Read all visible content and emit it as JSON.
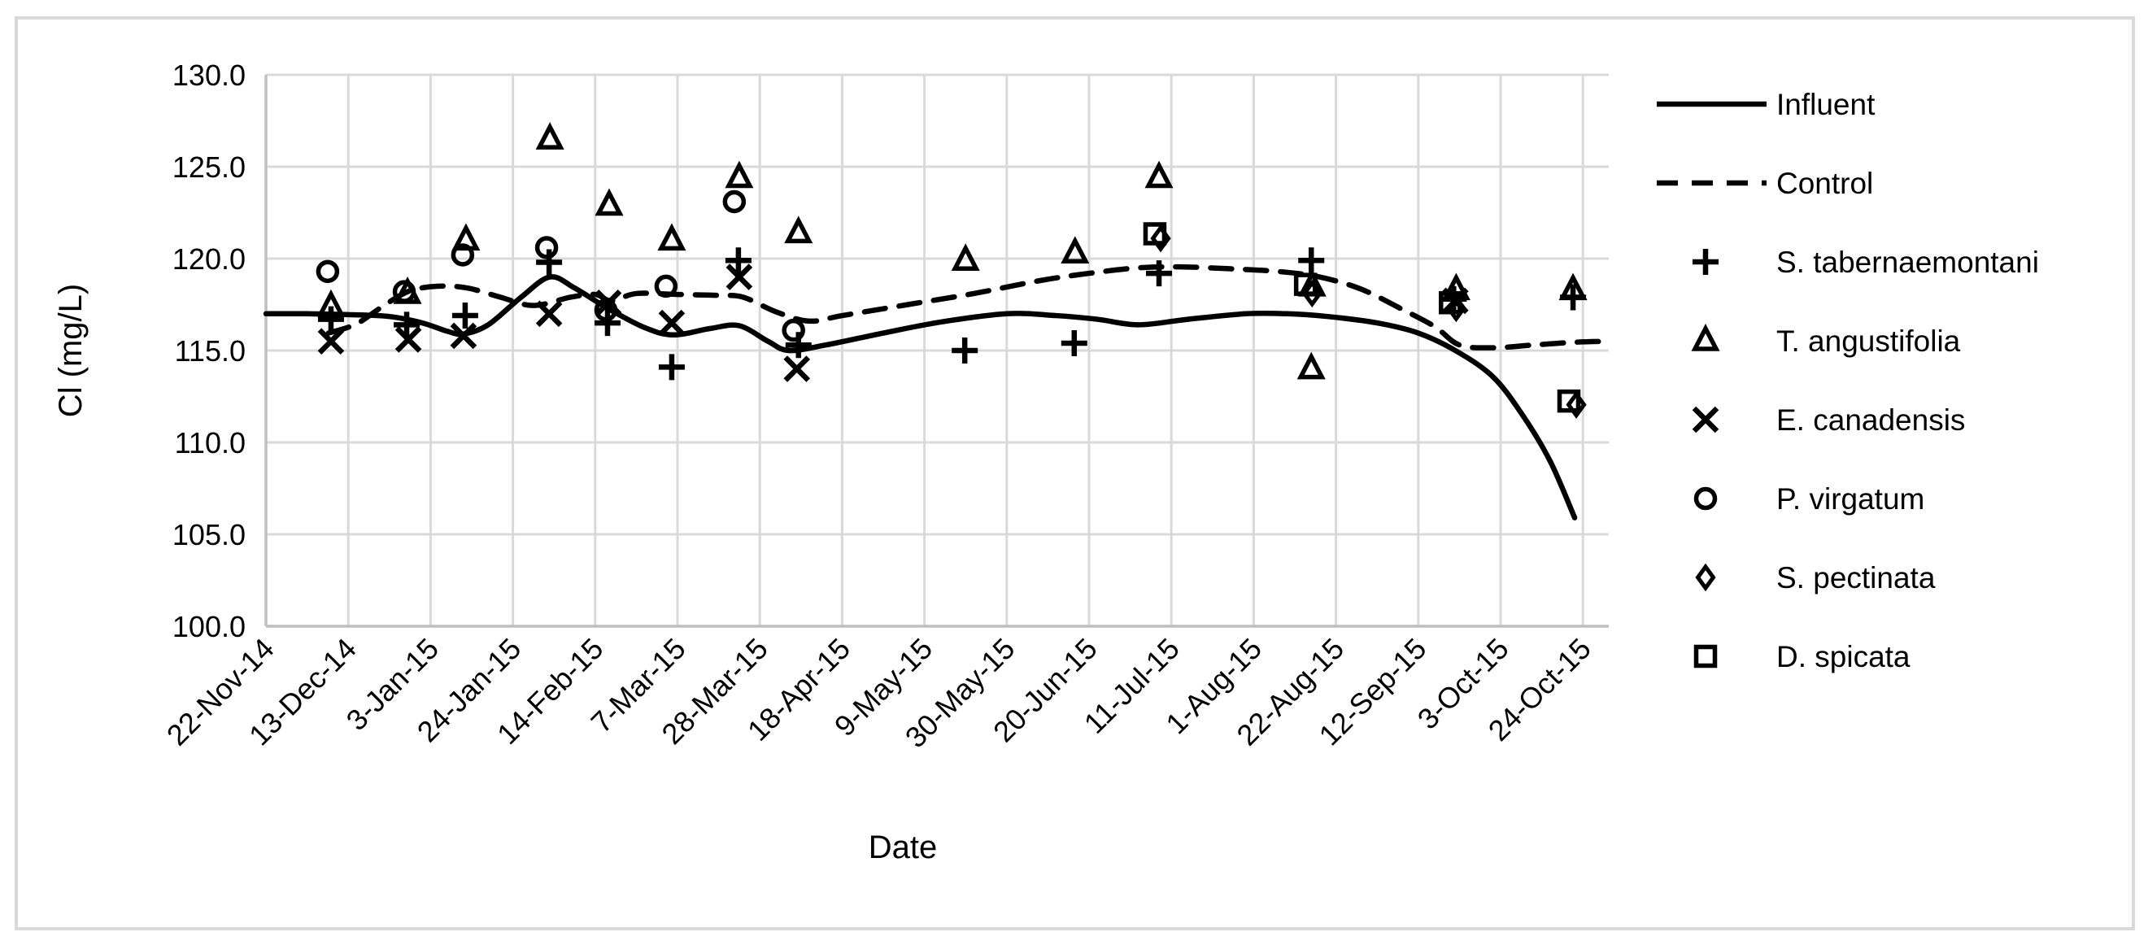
{
  "figure": {
    "background": "#ffffff",
    "border_color": "#d9d9d9"
  },
  "chart_data": {
    "type": "scatter",
    "title": "",
    "xlabel": "Date",
    "ylabel": "Cl (mg/L)",
    "ylim": [
      100.0,
      130.0
    ],
    "ytick_step": 5.0,
    "ytick_labels": [
      "100.0",
      "105.0",
      "110.0",
      "115.0",
      "120.0",
      "125.0",
      "130.0"
    ],
    "xtick_labels": [
      "22-Nov-14",
      "13-Dec-14",
      "3-Jan-15",
      "24-Jan-15",
      "14-Feb-15",
      "7-Mar-15",
      "28-Mar-15",
      "18-Apr-15",
      "9-May-15",
      "30-May-15",
      "20-Jun-15",
      "11-Jul-15",
      "1-Aug-15",
      "22-Aug-15",
      "12-Sep-15",
      "3-Oct-15",
      "24-Oct-15"
    ],
    "x_unit": "gridline index: 0 = 22-Nov-14, each unit = 21 days",
    "x_range": [
      0,
      16.3
    ],
    "grid": true,
    "grid_color": "#d9d9d9",
    "axis_color": "#bfbfbf",
    "series_color": "#000000",
    "legend_position": "right",
    "lines": [
      {
        "name": "Influent",
        "style": "solid",
        "points": [
          [
            0,
            117.0
          ],
          [
            0.5,
            117.0
          ],
          [
            1.0,
            116.95
          ],
          [
            1.5,
            116.85
          ],
          [
            1.9,
            116.5
          ],
          [
            2.2,
            116.05
          ],
          [
            2.4,
            115.9
          ],
          [
            2.7,
            116.4
          ],
          [
            3.1,
            117.9
          ],
          [
            3.45,
            119.0
          ],
          [
            3.75,
            118.4
          ],
          [
            4.15,
            117.3
          ],
          [
            4.6,
            116.25
          ],
          [
            4.95,
            115.85
          ],
          [
            5.4,
            116.2
          ],
          [
            5.75,
            116.35
          ],
          [
            6.1,
            115.5
          ],
          [
            6.35,
            115.0
          ],
          [
            6.8,
            115.3
          ],
          [
            7.5,
            115.95
          ],
          [
            8.2,
            116.55
          ],
          [
            9.0,
            117.0
          ],
          [
            9.6,
            116.9
          ],
          [
            10.1,
            116.7
          ],
          [
            10.6,
            116.4
          ],
          [
            11.2,
            116.7
          ],
          [
            11.9,
            117.0
          ],
          [
            12.4,
            117.0
          ],
          [
            12.9,
            116.85
          ],
          [
            13.5,
            116.5
          ],
          [
            14.0,
            115.95
          ],
          [
            14.45,
            115.0
          ],
          [
            14.9,
            113.6
          ],
          [
            15.25,
            111.6
          ],
          [
            15.6,
            109.0
          ],
          [
            15.9,
            105.9
          ]
        ]
      },
      {
        "name": "Control",
        "style": "dashed",
        "points": [
          [
            0.76,
            115.95
          ],
          [
            1.1,
            116.45
          ],
          [
            1.45,
            117.5
          ],
          [
            1.75,
            118.25
          ],
          [
            2.1,
            118.5
          ],
          [
            2.45,
            118.4
          ],
          [
            2.85,
            117.9
          ],
          [
            3.25,
            117.45
          ],
          [
            3.7,
            117.9
          ],
          [
            4.0,
            118.05
          ],
          [
            4.2,
            117.7
          ],
          [
            4.5,
            118.1
          ],
          [
            5.0,
            118.05
          ],
          [
            5.5,
            118.0
          ],
          [
            5.8,
            117.9
          ],
          [
            6.2,
            117.1
          ],
          [
            6.6,
            116.6
          ],
          [
            7.0,
            116.9
          ],
          [
            7.8,
            117.5
          ],
          [
            8.6,
            118.1
          ],
          [
            9.4,
            118.8
          ],
          [
            10.0,
            119.2
          ],
          [
            10.6,
            119.5
          ],
          [
            11.1,
            119.55
          ],
          [
            11.7,
            119.45
          ],
          [
            12.3,
            119.3
          ],
          [
            12.8,
            119.0
          ],
          [
            13.3,
            118.35
          ],
          [
            13.8,
            117.25
          ],
          [
            14.2,
            116.3
          ],
          [
            14.5,
            115.3
          ],
          [
            14.9,
            115.15
          ],
          [
            15.4,
            115.3
          ],
          [
            15.9,
            115.45
          ],
          [
            16.3,
            115.5
          ]
        ]
      }
    ],
    "scatter_series": [
      {
        "name": "S. tabernaemontani",
        "marker": "plus",
        "points": [
          [
            0.79,
            116.7
          ],
          [
            1.71,
            116.4
          ],
          [
            2.42,
            116.9
          ],
          [
            3.44,
            119.8
          ],
          [
            4.15,
            116.5
          ],
          [
            4.93,
            114.1
          ],
          [
            5.74,
            119.9
          ],
          [
            6.47,
            115.3
          ],
          [
            8.49,
            115.0
          ],
          [
            9.82,
            115.4
          ],
          [
            10.85,
            119.2
          ],
          [
            12.7,
            119.9
          ],
          [
            14.43,
            117.8
          ],
          [
            15.88,
            117.9
          ]
        ]
      },
      {
        "name": "T. angustifolia",
        "marker": "triangle",
        "points": [
          [
            0.79,
            117.4
          ],
          [
            1.72,
            118.1
          ],
          [
            2.43,
            121.0
          ],
          [
            3.45,
            126.5
          ],
          [
            4.17,
            122.9
          ],
          [
            4.93,
            121.0
          ],
          [
            5.75,
            124.4
          ],
          [
            6.47,
            121.4
          ],
          [
            8.5,
            119.9
          ],
          [
            9.83,
            120.3
          ],
          [
            10.85,
            124.4
          ],
          [
            12.71,
            118.5
          ],
          [
            12.7,
            114.0
          ],
          [
            14.46,
            118.3
          ],
          [
            15.88,
            118.3
          ]
        ]
      },
      {
        "name": "E. canadensis",
        "marker": "x",
        "points": [
          [
            0.79,
            115.5
          ],
          [
            1.73,
            115.6
          ],
          [
            2.4,
            115.8
          ],
          [
            3.44,
            117.0
          ],
          [
            4.16,
            117.6
          ],
          [
            4.93,
            116.5
          ],
          [
            5.75,
            119.0
          ],
          [
            6.45,
            114.0
          ],
          [
            14.45,
            117.7
          ]
        ]
      },
      {
        "name": "P. virgatum",
        "marker": "circle",
        "points": [
          [
            0.75,
            119.3
          ],
          [
            1.68,
            118.2
          ],
          [
            2.39,
            120.2
          ],
          [
            3.41,
            120.6
          ],
          [
            4.13,
            117.2
          ],
          [
            4.86,
            118.5
          ],
          [
            5.69,
            123.1
          ],
          [
            6.41,
            116.1
          ]
        ]
      },
      {
        "name": "S. pectinata",
        "marker": "diamond",
        "points": [
          [
            10.87,
            121.1
          ],
          [
            12.71,
            118.1
          ],
          [
            14.46,
            117.3
          ],
          [
            15.92,
            112.05
          ]
        ]
      },
      {
        "name": "D. spicata",
        "marker": "square",
        "points": [
          [
            10.8,
            121.35
          ],
          [
            12.63,
            118.6
          ],
          [
            14.39,
            117.6
          ],
          [
            15.83,
            112.25
          ]
        ]
      }
    ],
    "legend": [
      {
        "label": "Influent",
        "glyph": "solid-line"
      },
      {
        "label": "Control",
        "glyph": "dashed-line"
      },
      {
        "label": "S. tabernaemontani",
        "glyph": "plus"
      },
      {
        "label": "T. angustifolia",
        "glyph": "triangle"
      },
      {
        "label": "E. canadensis",
        "glyph": "x"
      },
      {
        "label": "P. virgatum",
        "glyph": "circle"
      },
      {
        "label": "S. pectinata",
        "glyph": "diamond"
      },
      {
        "label": "D. spicata",
        "glyph": "square"
      }
    ]
  }
}
